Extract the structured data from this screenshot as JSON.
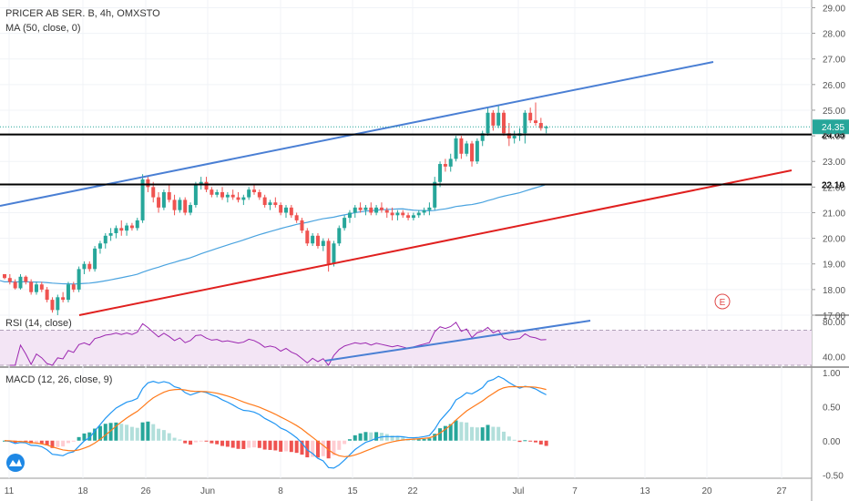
{
  "header": {
    "title": "PRICER AB SER. B, 4h, OMXSTO",
    "ma_label": "MA (50, close, 0)"
  },
  "rsi_panel": {
    "label": "RSI (14, close)"
  },
  "macd_panel": {
    "label": "MACD (12, 26, close, 9)"
  },
  "event_marker": "E",
  "colors": {
    "up": "#26a69a",
    "down": "#ef5350",
    "ma": "#4aa3df",
    "trend_upper": "#4a7fd4",
    "trend_lower": "#e0201f",
    "level": "#000000",
    "rsi": "#9c27b0",
    "rsi_fill": "#f3e5f5",
    "macd": "#2196f3",
    "signal": "#ff7a1a",
    "current_price_label": "#26a69a",
    "level_label": "#000000"
  },
  "chart_data": [
    {
      "type": "candlestick",
      "title": "PRICER AB SER. B, 4h, OMXSTO",
      "ylim": [
        17,
        29.3
      ],
      "y_ticks": [
        "17.00",
        "18.00",
        "19.00",
        "20.00",
        "21.00",
        "22.00",
        "23.00",
        "24.00",
        "25.00",
        "26.00",
        "27.00",
        "28.00",
        "29.00"
      ],
      "x_ticks": [
        "11",
        "18",
        "26",
        "Jun",
        "8",
        "15",
        "22",
        "Jul",
        "7",
        "13",
        "20",
        "27"
      ],
      "last_price": "24.35",
      "levels": [
        "24.05",
        "22.10"
      ],
      "candles_ohlc": [
        [
          18.6,
          18.6,
          18.4,
          18.45
        ],
        [
          18.45,
          18.6,
          18.2,
          18.3
        ],
        [
          18.3,
          18.4,
          18.0,
          18.05
        ],
        [
          18.05,
          18.6,
          18.0,
          18.5
        ],
        [
          18.5,
          18.55,
          18.2,
          18.3
        ],
        [
          18.3,
          18.4,
          17.8,
          17.9
        ],
        [
          17.9,
          18.3,
          17.8,
          18.2
        ],
        [
          18.2,
          18.3,
          17.9,
          18.0
        ],
        [
          18.0,
          18.1,
          17.5,
          17.6
        ],
        [
          17.6,
          17.7,
          17.1,
          17.2
        ],
        [
          17.2,
          17.8,
          17.0,
          17.7
        ],
        [
          17.7,
          17.9,
          17.5,
          17.6
        ],
        [
          17.6,
          18.3,
          17.5,
          18.2
        ],
        [
          18.2,
          18.3,
          17.9,
          18.0
        ],
        [
          18.0,
          18.9,
          17.9,
          18.8
        ],
        [
          18.8,
          19.1,
          18.6,
          19.0
        ],
        [
          19.0,
          19.1,
          18.7,
          18.8
        ],
        [
          18.8,
          19.7,
          18.7,
          19.6
        ],
        [
          19.6,
          19.9,
          19.4,
          19.8
        ],
        [
          19.8,
          20.2,
          19.6,
          20.1
        ],
        [
          20.1,
          20.4,
          19.9,
          20.2
        ],
        [
          20.2,
          20.5,
          20.0,
          20.4
        ],
        [
          20.4,
          20.7,
          20.1,
          20.3
        ],
        [
          20.3,
          20.6,
          20.1,
          20.5
        ],
        [
          20.5,
          20.6,
          20.3,
          20.4
        ],
        [
          20.4,
          20.8,
          20.3,
          20.7
        ],
        [
          20.7,
          22.5,
          20.6,
          22.3
        ],
        [
          22.3,
          22.4,
          21.8,
          22.0
        ],
        [
          22.0,
          22.2,
          21.4,
          21.6
        ],
        [
          21.6,
          21.8,
          21.0,
          21.2
        ],
        [
          21.2,
          21.9,
          21.1,
          21.8
        ],
        [
          21.8,
          22.1,
          21.4,
          21.5
        ],
        [
          21.5,
          21.7,
          20.9,
          21.1
        ],
        [
          21.1,
          21.6,
          21.0,
          21.5
        ],
        [
          21.5,
          21.6,
          20.9,
          21.0
        ],
        [
          21.0,
          21.4,
          20.9,
          21.3
        ],
        [
          21.3,
          22.2,
          21.2,
          22.1
        ],
        [
          22.1,
          22.4,
          21.9,
          22.2
        ],
        [
          22.2,
          22.4,
          21.8,
          21.9
        ],
        [
          21.9,
          22.0,
          21.6,
          21.7
        ],
        [
          21.7,
          21.9,
          21.6,
          21.8
        ],
        [
          21.8,
          22.0,
          21.5,
          21.6
        ],
        [
          21.6,
          21.8,
          21.4,
          21.7
        ],
        [
          21.7,
          21.9,
          21.5,
          21.6
        ],
        [
          21.6,
          21.8,
          21.4,
          21.5
        ],
        [
          21.5,
          21.7,
          21.3,
          21.6
        ],
        [
          21.6,
          22.0,
          21.5,
          21.9
        ],
        [
          21.9,
          22.1,
          21.7,
          21.8
        ],
        [
          21.8,
          21.9,
          21.5,
          21.6
        ],
        [
          21.6,
          21.7,
          21.2,
          21.3
        ],
        [
          21.3,
          21.5,
          21.1,
          21.4
        ],
        [
          21.4,
          21.6,
          21.2,
          21.3
        ],
        [
          21.3,
          21.4,
          20.9,
          21.0
        ],
        [
          21.0,
          21.3,
          20.8,
          21.2
        ],
        [
          21.2,
          21.3,
          20.8,
          20.9
        ],
        [
          20.9,
          21.0,
          20.6,
          20.7
        ],
        [
          20.7,
          20.8,
          20.2,
          20.3
        ],
        [
          20.3,
          20.4,
          19.7,
          19.8
        ],
        [
          19.8,
          20.2,
          19.7,
          20.1
        ],
        [
          20.1,
          20.2,
          19.6,
          19.7
        ],
        [
          19.7,
          20.0,
          19.5,
          19.9
        ],
        [
          19.9,
          20.0,
          18.7,
          19.0
        ],
        [
          19.0,
          19.9,
          18.9,
          19.8
        ],
        [
          19.8,
          20.5,
          19.7,
          20.4
        ],
        [
          20.4,
          20.9,
          20.3,
          20.8
        ],
        [
          20.8,
          21.1,
          20.6,
          21.0
        ],
        [
          21.0,
          21.3,
          20.8,
          21.2
        ],
        [
          21.2,
          21.4,
          21.0,
          21.1
        ],
        [
          21.1,
          21.3,
          20.9,
          21.2
        ],
        [
          21.2,
          21.4,
          20.9,
          21.0
        ],
        [
          21.0,
          21.3,
          20.9,
          21.2
        ],
        [
          21.2,
          21.4,
          21.0,
          21.1
        ],
        [
          21.1,
          21.2,
          20.8,
          21.0
        ],
        [
          21.0,
          21.2,
          20.7,
          20.9
        ],
        [
          20.9,
          21.1,
          20.7,
          21.0
        ],
        [
          21.0,
          21.1,
          20.8,
          20.9
        ],
        [
          20.9,
          21.0,
          20.7,
          20.8
        ],
        [
          20.8,
          21.0,
          20.7,
          20.9
        ],
        [
          20.9,
          21.1,
          20.8,
          21.0
        ],
        [
          21.0,
          21.2,
          20.9,
          21.1
        ],
        [
          21.1,
          21.4,
          20.9,
          21.2
        ],
        [
          21.2,
          22.4,
          21.1,
          22.2
        ],
        [
          22.2,
          23.0,
          22.0,
          22.9
        ],
        [
          22.9,
          23.1,
          22.6,
          22.8
        ],
        [
          22.8,
          23.3,
          22.6,
          23.1
        ],
        [
          23.1,
          24.0,
          23.0,
          23.9
        ],
        [
          23.9,
          24.0,
          23.1,
          23.3
        ],
        [
          23.3,
          23.8,
          23.2,
          23.7
        ],
        [
          23.7,
          23.8,
          22.8,
          23.0
        ],
        [
          23.0,
          23.9,
          22.9,
          23.8
        ],
        [
          23.8,
          24.2,
          23.6,
          24.1
        ],
        [
          24.1,
          25.1,
          24.0,
          24.9
        ],
        [
          24.9,
          25.0,
          24.2,
          24.4
        ],
        [
          24.4,
          25.2,
          24.3,
          24.9
        ],
        [
          24.9,
          25.0,
          24.0,
          24.1
        ],
        [
          24.1,
          24.5,
          23.6,
          23.9
        ],
        [
          23.9,
          24.2,
          23.7,
          24.0
        ],
        [
          24.0,
          24.3,
          23.8,
          24.1
        ],
        [
          24.1,
          25.0,
          23.7,
          24.9
        ],
        [
          24.9,
          25.1,
          24.5,
          24.6
        ],
        [
          24.6,
          25.3,
          24.4,
          24.5
        ],
        [
          24.5,
          24.7,
          24.2,
          24.3
        ],
        [
          24.3,
          24.4,
          24.1,
          24.35
        ]
      ]
    },
    {
      "type": "line",
      "title": "RSI (14, close)",
      "ylim": [
        30,
        85
      ],
      "y_ticks": [
        "80.00",
        "40.00"
      ],
      "bands": [
        70,
        30
      ]
    },
    {
      "type": "line",
      "title": "MACD (12, 26, close, 9)",
      "ylim": [
        -0.55,
        1.05
      ],
      "y_ticks": [
        "1.00",
        "0.50",
        "0.00",
        "-0.50"
      ]
    }
  ]
}
